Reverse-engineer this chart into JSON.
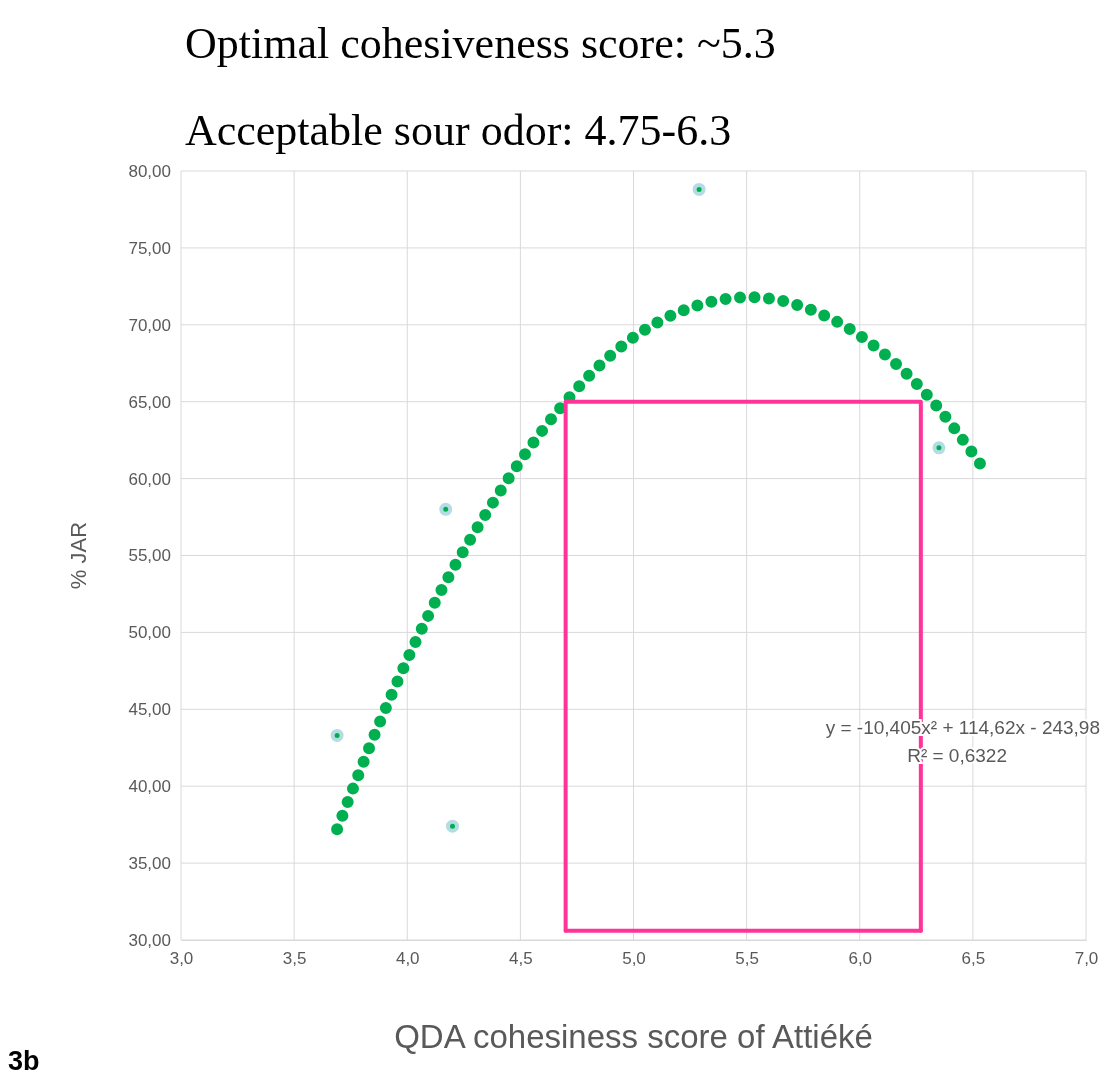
{
  "chart_data": {
    "type": "scatter",
    "title": "Optimal cohesiveness score: ~5.3",
    "subtitle": "Acceptable sour odor:  4.75-6.3",
    "xlabel": "QDA cohesiness score of Attiéké",
    "ylabel": "% JAR",
    "annotations": [
      "y = -10,405x² + 114,62x - 243,98",
      "R² = 0,6322",
      "3b"
    ],
    "xlim": [
      3,
      7
    ],
    "xticks": [
      {
        "value": 3,
        "label": "3,0"
      },
      {
        "value": 3.5,
        "label": "3,5"
      },
      {
        "value": 4,
        "label": "4,0"
      },
      {
        "value": 4.5,
        "label": "4,5"
      },
      {
        "value": 5,
        "label": "5,0"
      },
      {
        "value": 5.5,
        "label": "5,5"
      },
      {
        "value": 6,
        "label": "6,0"
      },
      {
        "value": 6.5,
        "label": "6,5"
      },
      {
        "value": 7,
        "label": "7,0"
      }
    ],
    "ylim": [
      30,
      80
    ],
    "yticks": [
      {
        "value": 30,
        "label": "30,00"
      },
      {
        "value": 35,
        "label": "35,00"
      },
      {
        "value": 40,
        "label": "40,00"
      },
      {
        "value": 45,
        "label": "45,00"
      },
      {
        "value": 50,
        "label": "50,00"
      },
      {
        "value": 55,
        "label": "55,00"
      },
      {
        "value": 60,
        "label": "60,00"
      },
      {
        "value": 65,
        "label": "65,00"
      },
      {
        "value": 70,
        "label": "70,00"
      },
      {
        "value": 75,
        "label": "75,00"
      },
      {
        "value": 80,
        "label": "80,00"
      }
    ],
    "grid": true,
    "series": [
      {
        "type": "scatter",
        "marker": "circle",
        "color": "#00b050",
        "x": [
          3.69,
          4.17,
          4.2,
          5.29,
          6.35
        ],
        "values": [
          43.3,
          58,
          37.4,
          78.8,
          62
        ]
      },
      {
        "type": "line",
        "marker": "none",
        "line_style": "dotted",
        "color": "#00b050",
        "x": [
          3.69,
          3.88,
          4.1,
          4.36,
          4.66,
          4.93,
          5.27,
          5.52,
          5.78,
          6.01,
          6.3,
          6.54
        ],
        "values": [
          37.2,
          44.2,
          51.3,
          58,
          64.3,
          68.4,
          71.2,
          71.8,
          71,
          69.2,
          65.4,
          60.8
        ]
      },
      {
        "type": "line",
        "marker": "none",
        "line_style": "solid",
        "color": "#ff3399",
        "x": [
          4.7,
          4.7,
          6.27,
          6.27
        ],
        "values": [
          30.6,
          65,
          65,
          30.6
        ]
      },
      {
        "type": "line",
        "marker": "none",
        "line_style": "solid",
        "color": "#ff3399",
        "x": [
          4.7,
          6.27
        ],
        "values": [
          30.6,
          30.6
        ]
      }
    ]
  }
}
